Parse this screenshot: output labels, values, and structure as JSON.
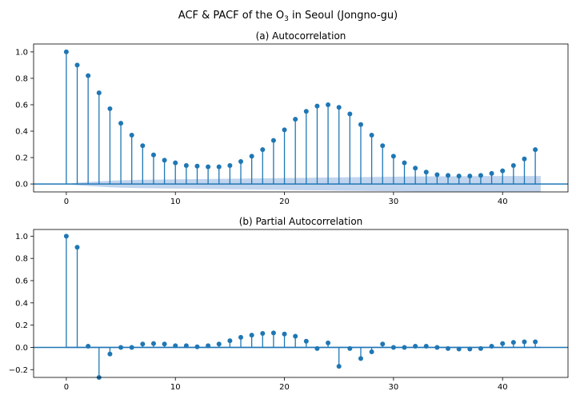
{
  "figure": {
    "title_prefix": "ACF & PACF of the O",
    "title_subscript": "3",
    "title_suffix": " in Seoul (Jongno-gu)"
  },
  "colors": {
    "stem": "#1f77b4",
    "band": "#aec7e8"
  },
  "chart_data": [
    {
      "type": "stem",
      "title": "(a) Autocorrelation",
      "xlim": [
        -3,
        46
      ],
      "ylim": [
        -0.06,
        1.06
      ],
      "xticks": [
        0,
        10,
        20,
        30,
        40
      ],
      "xtick_labels": [
        "0",
        "10",
        "20",
        "30",
        "40"
      ],
      "yticks": [
        0.0,
        0.2,
        0.4,
        0.6,
        0.8,
        1.0
      ],
      "ytick_labels": [
        "0.0",
        "0.2",
        "0.4",
        "0.6",
        "0.8",
        "1.0"
      ],
      "x": [
        0,
        1,
        2,
        3,
        4,
        5,
        6,
        7,
        8,
        9,
        10,
        11,
        12,
        13,
        14,
        15,
        16,
        17,
        18,
        19,
        20,
        21,
        22,
        23,
        24,
        25,
        26,
        27,
        28,
        29,
        30,
        31,
        32,
        33,
        34,
        35,
        36,
        37,
        38,
        39,
        40,
        41,
        42,
        43
      ],
      "values": [
        1.0,
        0.9,
        0.82,
        0.69,
        0.57,
        0.46,
        0.37,
        0.29,
        0.22,
        0.18,
        0.16,
        0.14,
        0.135,
        0.13,
        0.13,
        0.14,
        0.17,
        0.21,
        0.26,
        0.33,
        0.41,
        0.49,
        0.55,
        0.59,
        0.6,
        0.58,
        0.53,
        0.45,
        0.37,
        0.29,
        0.21,
        0.16,
        0.12,
        0.09,
        0.07,
        0.065,
        0.06,
        0.06,
        0.065,
        0.08,
        0.1,
        0.14,
        0.19,
        0.26
      ],
      "confidence_band": {
        "x": [
          0,
          1,
          2,
          3,
          4,
          5,
          6,
          7,
          8,
          9,
          10,
          11,
          12,
          13,
          14,
          15,
          16,
          17,
          18,
          19,
          20,
          21,
          22,
          23,
          24,
          25,
          26,
          27,
          28,
          29,
          30,
          31,
          32,
          33,
          34,
          35,
          36,
          37,
          38,
          39,
          40,
          41,
          42,
          43.5
        ],
        "upper": [
          0.0,
          0.01,
          0.015,
          0.02,
          0.025,
          0.028,
          0.03,
          0.032,
          0.033,
          0.034,
          0.035,
          0.036,
          0.037,
          0.038,
          0.039,
          0.04,
          0.041,
          0.042,
          0.043,
          0.044,
          0.045,
          0.046,
          0.047,
          0.048,
          0.049,
          0.05,
          0.051,
          0.052,
          0.053,
          0.054,
          0.055,
          0.056,
          0.057,
          0.057,
          0.058,
          0.058,
          0.059,
          0.059,
          0.06,
          0.06,
          0.06,
          0.06,
          0.06,
          0.06
        ],
        "lower": [
          0.0,
          -0.01,
          -0.015,
          -0.02,
          -0.025,
          -0.028,
          -0.03,
          -0.032,
          -0.033,
          -0.034,
          -0.035,
          -0.036,
          -0.037,
          -0.038,
          -0.039,
          -0.04,
          -0.041,
          -0.042,
          -0.043,
          -0.044,
          -0.045,
          -0.046,
          -0.047,
          -0.048,
          -0.049,
          -0.05,
          -0.051,
          -0.052,
          -0.053,
          -0.054,
          -0.055,
          -0.056,
          -0.057,
          -0.057,
          -0.058,
          -0.058,
          -0.059,
          -0.059,
          -0.06,
          -0.06,
          -0.06,
          -0.06,
          -0.06,
          -0.06
        ]
      }
    },
    {
      "type": "stem",
      "title": "(b) Partial Autocorrelation",
      "xlim": [
        -3,
        46
      ],
      "ylim": [
        -0.27,
        1.06
      ],
      "xticks": [
        0,
        10,
        20,
        30,
        40
      ],
      "xtick_labels": [
        "0",
        "10",
        "20",
        "30",
        "40"
      ],
      "yticks": [
        -0.2,
        0.0,
        0.2,
        0.4,
        0.6,
        0.8,
        1.0
      ],
      "ytick_labels": [
        "−0.2",
        "0.0",
        "0.2",
        "0.4",
        "0.6",
        "0.8",
        "1.0"
      ],
      "x": [
        0,
        1,
        2,
        3,
        4,
        5,
        6,
        7,
        8,
        9,
        10,
        11,
        12,
        13,
        14,
        15,
        16,
        17,
        18,
        19,
        20,
        21,
        22,
        23,
        24,
        25,
        26,
        27,
        28,
        29,
        30,
        31,
        32,
        33,
        34,
        35,
        36,
        37,
        38,
        39,
        40,
        41,
        42,
        43
      ],
      "values": [
        1.0,
        0.9,
        0.01,
        -0.27,
        -0.06,
        0.0,
        0.0,
        0.03,
        0.035,
        0.03,
        0.015,
        0.015,
        0.005,
        0.015,
        0.03,
        0.06,
        0.09,
        0.11,
        0.125,
        0.13,
        0.12,
        0.1,
        0.055,
        -0.01,
        0.04,
        -0.17,
        -0.01,
        -0.1,
        -0.04,
        0.03,
        0.0,
        0.0,
        0.01,
        0.01,
        0.0,
        -0.01,
        -0.015,
        -0.015,
        -0.01,
        0.01,
        0.035,
        0.045,
        0.05,
        0.05
      ],
      "confidence_band": {
        "x": [
          0,
          43.5
        ],
        "upper": [
          0.008,
          0.008
        ],
        "lower": [
          -0.008,
          -0.008
        ]
      }
    }
  ]
}
